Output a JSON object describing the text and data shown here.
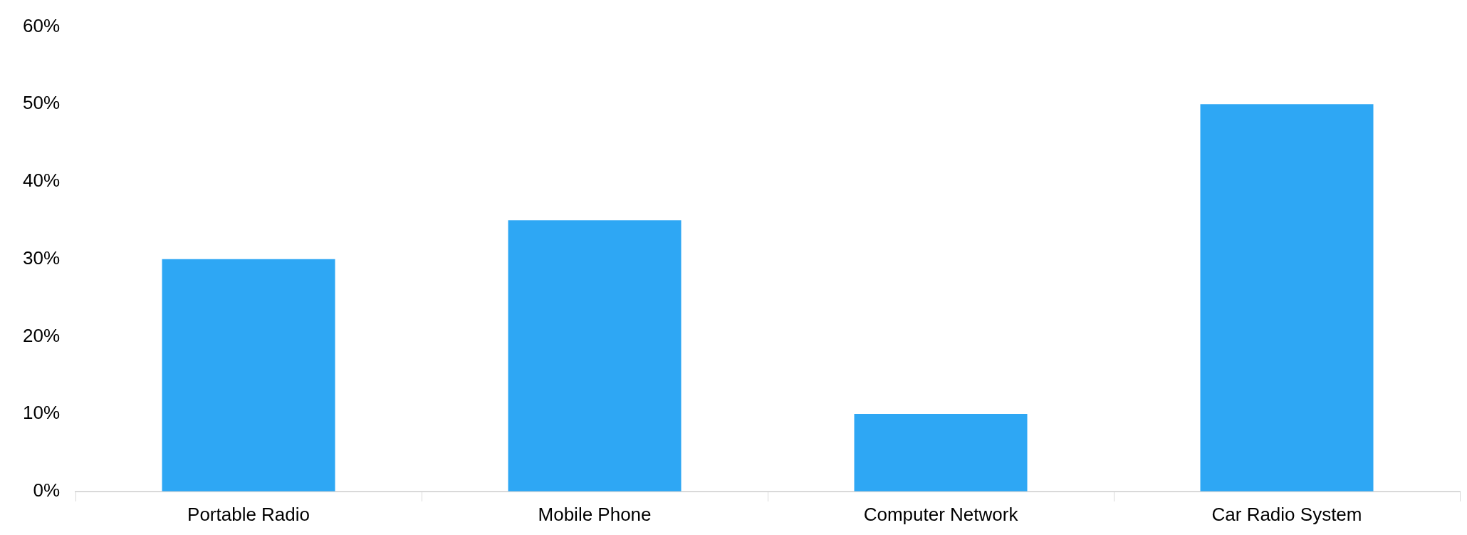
{
  "chart_data": {
    "type": "bar",
    "categories": [
      "Portable Radio",
      "Mobile Phone",
      "Computer Network",
      "Car Radio System"
    ],
    "values": [
      30,
      35,
      10,
      50
    ],
    "color": "#2ea7f4",
    "ylim": [
      0,
      60
    ],
    "yticks": [
      {
        "value": 0,
        "label": "0%"
      },
      {
        "value": 10,
        "label": "10%"
      },
      {
        "value": 20,
        "label": "20%"
      },
      {
        "value": 30,
        "label": "30%"
      },
      {
        "value": 40,
        "label": "40%"
      },
      {
        "value": 50,
        "label": "50%"
      },
      {
        "value": 60,
        "label": "60%"
      }
    ],
    "grid": false,
    "legend": false
  }
}
